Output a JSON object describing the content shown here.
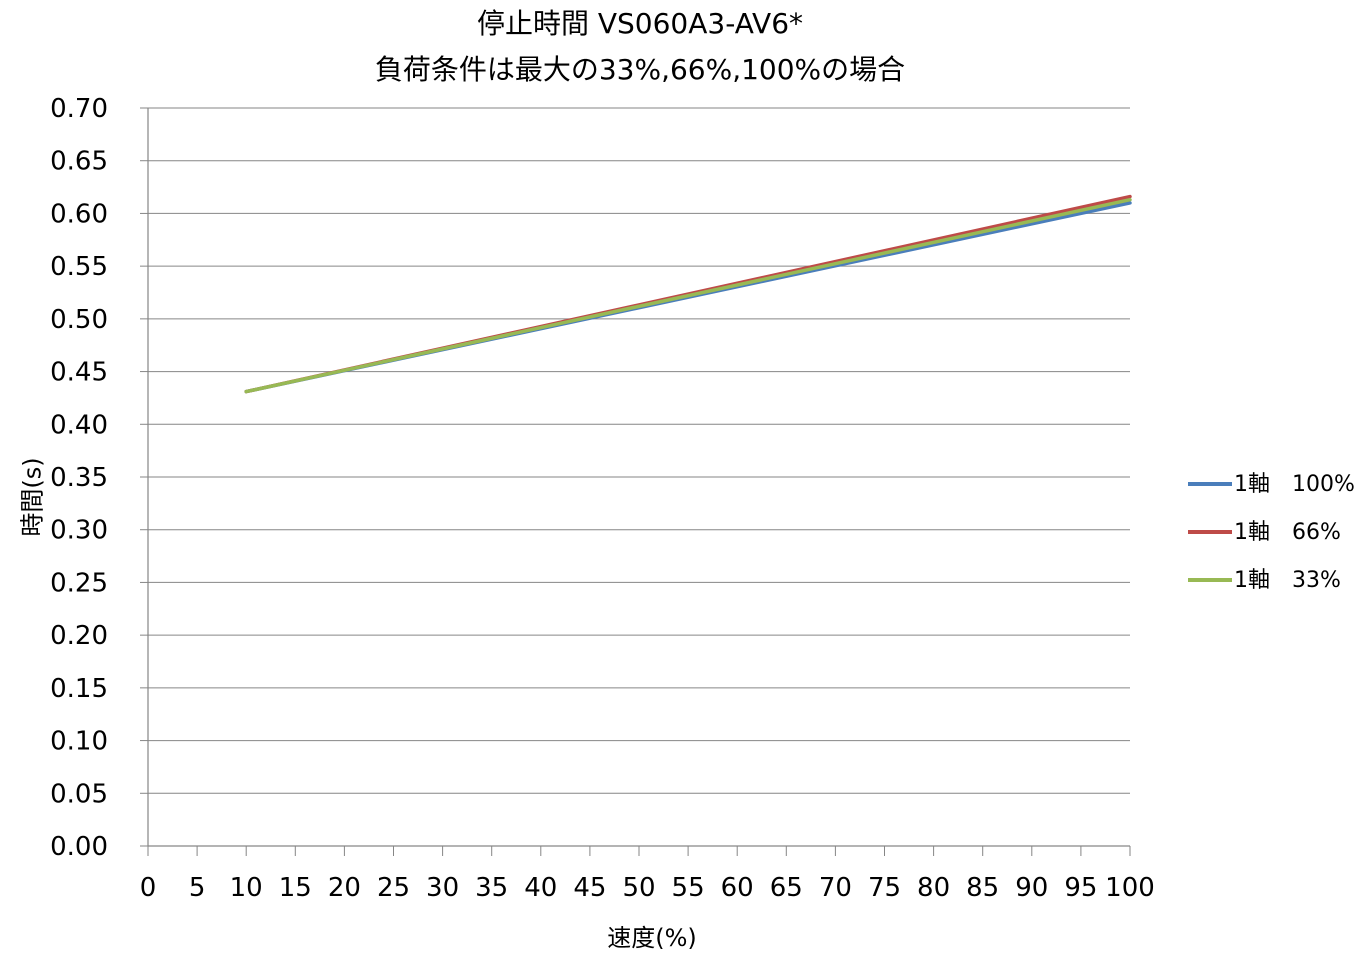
{
  "chart_data": {
    "type": "line",
    "title_lines": [
      "停止時間 VS060A3-AV6*",
      "負荷条件は最大の33%,66%,100%の場合"
    ],
    "xlabel": "速度(%)",
    "ylabel": "時間(s)",
    "x_ticks": [
      0,
      5,
      10,
      15,
      20,
      25,
      30,
      35,
      40,
      45,
      50,
      55,
      60,
      65,
      70,
      75,
      80,
      85,
      90,
      95,
      100
    ],
    "y_ticks": [
      "0.00",
      "0.05",
      "0.10",
      "0.15",
      "0.20",
      "0.25",
      "0.30",
      "0.35",
      "0.40",
      "0.45",
      "0.50",
      "0.55",
      "0.60",
      "0.65",
      "0.70"
    ],
    "xlim": [
      0,
      100
    ],
    "ylim": [
      0,
      0.7
    ],
    "grid": "horizontal",
    "legend_position": "right",
    "x": [
      10,
      100
    ],
    "series": [
      {
        "name": "1軸　100%",
        "color": "#4a7ebb",
        "values": [
          0.431,
          0.61
        ]
      },
      {
        "name": "1軸　66%",
        "color": "#be4b48",
        "values": [
          0.431,
          0.616
        ]
      },
      {
        "name": "1軸　33%",
        "color": "#98b954",
        "values": [
          0.431,
          0.613
        ]
      }
    ]
  }
}
